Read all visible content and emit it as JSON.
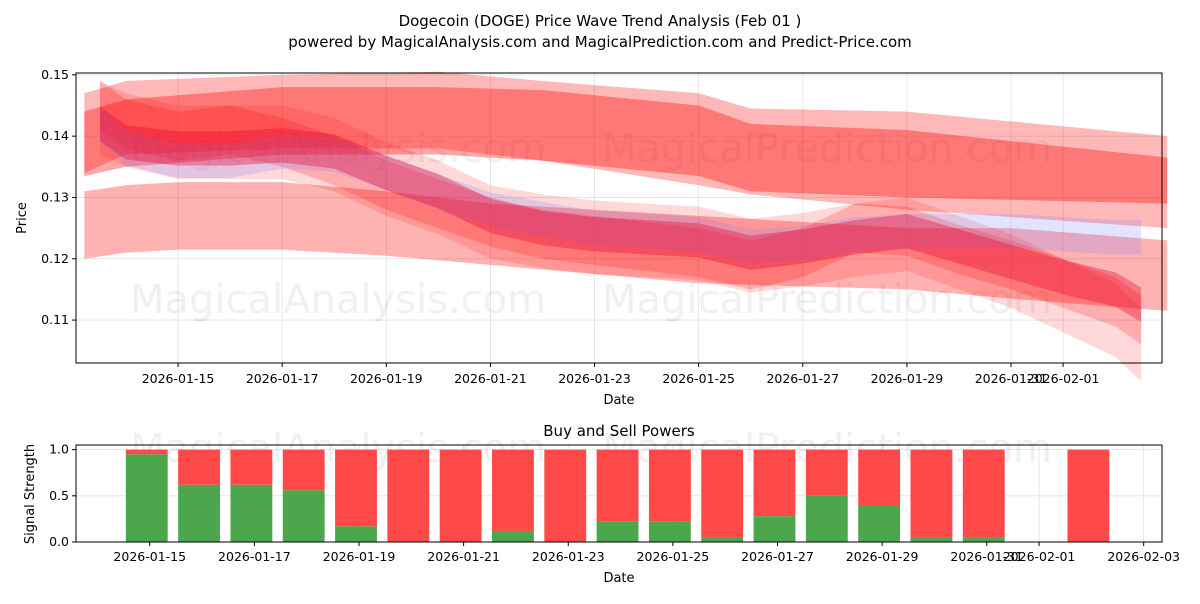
{
  "title": "Dogecoin (DOGE) Price Wave Trend Analysis (Feb 01 )",
  "subtitle": "powered by MagicalAnalysis.com and MagicalPrediction.com and Predict-Price.com",
  "watermarks": [
    "MagicalAnalysis.com",
    "MagicalPrediction.com"
  ],
  "chart_data": [
    {
      "type": "area",
      "title": "",
      "xlabel": "Date",
      "ylabel": "Price",
      "xlim_days_from_jan0": [
        13.04,
        33.9
      ],
      "ylim": [
        0.103,
        0.1503
      ],
      "grid": true,
      "x_ticks": [
        {
          "day": 15,
          "label": "2026-01-15"
        },
        {
          "day": 17,
          "label": "2026-01-17"
        },
        {
          "day": 19,
          "label": "2026-01-19"
        },
        {
          "day": 21,
          "label": "2026-01-21"
        },
        {
          "day": 23,
          "label": "2026-01-23"
        },
        {
          "day": 25,
          "label": "2026-01-25"
        },
        {
          "day": 27,
          "label": "2026-01-27"
        },
        {
          "day": 29,
          "label": "2026-01-29"
        },
        {
          "day": 31,
          "label": "2026-01-31"
        },
        {
          "day": 32,
          "label": "2026-02-01"
        }
      ],
      "y_ticks": [
        0.11,
        0.12,
        0.13,
        0.14,
        0.15
      ],
      "bands": [
        {
          "color": "#ff0000",
          "opacity": 0.28,
          "x": [
            13.2,
            14,
            17,
            20,
            22,
            25,
            26,
            29,
            34
          ],
          "upper": [
            0.147,
            0.149,
            0.15,
            0.1505,
            0.149,
            0.147,
            0.1445,
            0.144,
            0.14
          ],
          "lower": [
            0.134,
            0.137,
            0.138,
            0.138,
            0.136,
            0.132,
            0.1305,
            0.128,
            0.125
          ]
        },
        {
          "color": "#ff0000",
          "opacity": 0.35,
          "x": [
            13.2,
            14,
            17,
            20,
            22,
            25,
            26,
            29,
            34
          ],
          "upper": [
            0.144,
            0.146,
            0.148,
            0.148,
            0.1475,
            0.145,
            0.142,
            0.141,
            0.1365
          ],
          "lower": [
            0.1335,
            0.135,
            0.137,
            0.137,
            0.136,
            0.1335,
            0.131,
            0.13,
            0.129
          ]
        },
        {
          "color": "#ff0000",
          "opacity": 0.3,
          "x": [
            13.2,
            14,
            15,
            17,
            19,
            21,
            23,
            25,
            27,
            29,
            31,
            34
          ],
          "upper": [
            0.131,
            0.132,
            0.1325,
            0.1325,
            0.131,
            0.129,
            0.128,
            0.127,
            0.126,
            0.125,
            0.125,
            0.123
          ],
          "lower": [
            0.12,
            0.121,
            0.1215,
            0.1215,
            0.1205,
            0.119,
            0.1175,
            0.116,
            0.1155,
            0.115,
            0.1135,
            0.1115
          ]
        }
      ],
      "x_trend": [
        13.5,
        14,
        15,
        16,
        17,
        18,
        19,
        20,
        21,
        22,
        23,
        24,
        25,
        26,
        27,
        28,
        29,
        30,
        31,
        32,
        33,
        33.5
      ],
      "trend_lines": [
        {
          "color": "#ff0000",
          "opacity": 0.15,
          "halfwidth": 0.006,
          "y": [
            0.143,
            0.141,
            0.139,
            0.139,
            0.139,
            0.137,
            0.133,
            0.13,
            0.126,
            0.1245,
            0.1235,
            0.123,
            0.1225,
            0.1205,
            0.1215,
            0.123,
            0.124,
            0.121,
            0.118,
            0.114,
            0.11,
            0.106
          ]
        },
        {
          "color": "#ff0000",
          "opacity": 0.2,
          "halfwidth": 0.004,
          "y": [
            0.145,
            0.142,
            0.14,
            0.141,
            0.139,
            0.136,
            0.132,
            0.129,
            0.126,
            0.124,
            0.123,
            0.122,
            0.121,
            0.119,
            0.121,
            0.125,
            0.1245,
            0.1215,
            0.119,
            0.116,
            0.113,
            0.11
          ]
        },
        {
          "color": "#8080ff",
          "opacity": 0.22,
          "halfwidth": 0.0028,
          "y": [
            0.142,
            0.138,
            0.136,
            0.136,
            0.1375,
            0.137,
            0.134,
            0.131,
            0.128,
            0.1265,
            0.125,
            0.1245,
            0.124,
            0.122,
            0.1225,
            0.124,
            0.1245,
            0.1245,
            0.1245,
            0.124,
            0.1235,
            0.1235
          ]
        },
        {
          "color": "#e8002a",
          "opacity": 0.35,
          "halfwidth": 0.0028,
          "y": [
            0.142,
            0.139,
            0.138,
            0.138,
            0.1385,
            0.1375,
            0.134,
            0.131,
            0.127,
            0.125,
            0.124,
            0.1235,
            0.123,
            0.121,
            0.122,
            0.1235,
            0.1245,
            0.122,
            0.1195,
            0.117,
            0.115,
            0.1125
          ]
        }
      ]
    },
    {
      "type": "bar",
      "title": "Buy and Sell Powers",
      "xlabel": "Date",
      "ylabel": "Signal Strength",
      "xlim_days_from_jan0": [
        13.59,
        34.35
      ],
      "ylim": [
        0,
        1.05
      ],
      "y_ticks": [
        "0.0",
        "0.5",
        "1.0"
      ],
      "x_ticks": [
        {
          "day": 15,
          "label": "2026-01-15"
        },
        {
          "day": 17,
          "label": "2026-01-17"
        },
        {
          "day": 19,
          "label": "2026-01-19"
        },
        {
          "day": 21,
          "label": "2026-01-21"
        },
        {
          "day": 23,
          "label": "2026-01-23"
        },
        {
          "day": 25,
          "label": "2026-01-25"
        },
        {
          "day": 27,
          "label": "2026-01-27"
        },
        {
          "day": 29,
          "label": "2026-01-29"
        },
        {
          "day": 31,
          "label": "2026-01-31"
        },
        {
          "day": 32,
          "label": "2026-02-01"
        },
        {
          "day": 34,
          "label": "2026-02-03"
        }
      ],
      "buy_color": "#4ca64c",
      "sell_color": "#ff4848",
      "days": [
        15,
        16,
        17,
        18,
        19,
        20,
        21,
        22,
        23,
        24,
        25,
        26,
        27,
        28,
        29,
        30,
        31,
        33
      ],
      "buy": [
        0.95,
        0.62,
        0.62,
        0.56,
        0.17,
        0,
        0,
        0.12,
        0,
        0.22,
        0.22,
        0.05,
        0.28,
        0.5,
        0.39,
        0.05,
        0.05,
        0
      ],
      "sell": [
        0.05,
        0.38,
        0.38,
        0.44,
        0.83,
        1,
        1,
        0.88,
        1,
        0.78,
        0.78,
        0.95,
        0.72,
        0.5,
        0.61,
        0.95,
        0.95,
        1
      ]
    }
  ]
}
